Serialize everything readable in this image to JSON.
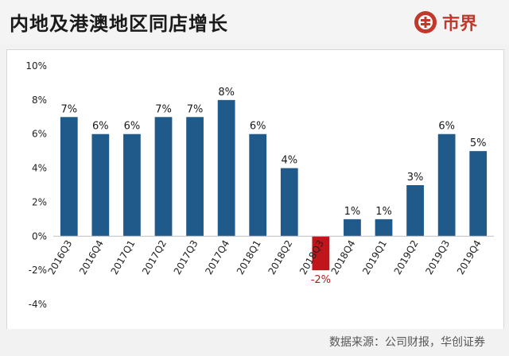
{
  "header": {
    "title": "内地及港澳地区同店增长",
    "brand_name": "市界",
    "brand_color": "#c0392b"
  },
  "footer": {
    "source": "数据来源：公司财报，华创证券"
  },
  "colors": {
    "positive_bar": "#1f5a8a",
    "negative_bar": "#c0151b",
    "negative_label": "#c0151b"
  },
  "chart_data": {
    "type": "bar",
    "categories": [
      "2016Q3",
      "2016Q4",
      "2017Q1",
      "2017Q2",
      "2017Q3",
      "2017Q4",
      "2018Q1",
      "2018Q2",
      "2018Q3",
      "2018Q4",
      "2019Q1",
      "2019Q2",
      "2019Q3",
      "2019Q4"
    ],
    "values": [
      7,
      6,
      6,
      7,
      7,
      8,
      6,
      4,
      -2,
      1,
      1,
      3,
      6,
      5
    ],
    "data_labels": [
      "7%",
      "6%",
      "6%",
      "7%",
      "7%",
      "8%",
      "6%",
      "4%",
      "-2%",
      "1%",
      "1%",
      "3%",
      "6%",
      "5%"
    ],
    "y_ticks": [
      10,
      8,
      6,
      4,
      2,
      0,
      -2,
      -4
    ],
    "y_tick_labels": [
      "10%",
      "8%",
      "6%",
      "4%",
      "2%",
      "0%",
      "-2%",
      "-4%"
    ],
    "ylim": [
      -4,
      10
    ],
    "title": "",
    "xlabel": "",
    "ylabel": "",
    "grid": false,
    "legend": "none"
  }
}
